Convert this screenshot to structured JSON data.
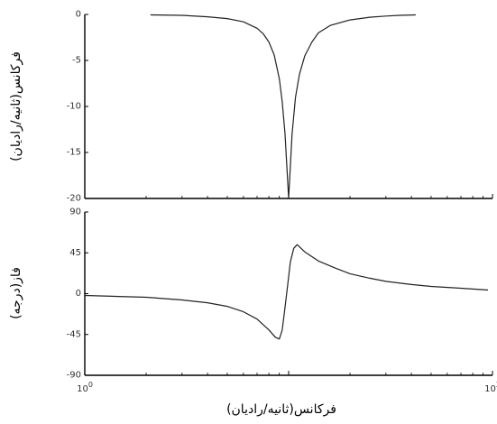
{
  "chart_data": [
    {
      "type": "line",
      "title": "",
      "ylabel": "فرکانس(ثانیه/رادیان)",
      "xlabel": "",
      "x_scale": "log",
      "xlim": [
        1,
        100
      ],
      "ylim": [
        -20,
        0
      ],
      "yticks": [
        "0",
        "-5",
        "-10",
        "-15",
        "-20"
      ],
      "grid": false,
      "series": [
        {
          "x": [
            2.1,
            3,
            4,
            5,
            6,
            7,
            7.5,
            8,
            8.5,
            9,
            9.3,
            9.6,
            10,
            10.4,
            10.8,
            11.3,
            12,
            13,
            14,
            16,
            20,
            25,
            30,
            35,
            42
          ],
          "values": [
            -0.05,
            -0.1,
            -0.25,
            -0.45,
            -0.8,
            -1.5,
            -2.1,
            -3.0,
            -4.4,
            -7.0,
            -9.5,
            -13.0,
            -20.0,
            -13.0,
            -9.0,
            -6.5,
            -4.5,
            -3.0,
            -2.0,
            -1.2,
            -0.6,
            -0.3,
            -0.18,
            -0.1,
            -0.05
          ]
        }
      ]
    },
    {
      "type": "line",
      "title": "",
      "ylabel": "فاز(درجه)",
      "xlabel": "فرکانس(ثانیه/رادیان)",
      "x_scale": "log",
      "xlim": [
        1,
        100
      ],
      "ylim": [
        -90,
        90
      ],
      "yticks": [
        "90",
        "45",
        "0",
        "-45",
        "-90"
      ],
      "xticks": [
        {
          "value": 1,
          "base": "10",
          "exp": "0"
        },
        {
          "value": 100,
          "base": "10",
          "exp": "2"
        }
      ],
      "grid": false,
      "series": [
        {
          "x": [
            1,
            2,
            3,
            4,
            5,
            6,
            7,
            8,
            8.6,
            9.0,
            9.3,
            9.6,
            9.9,
            10.2,
            10.6,
            11,
            12,
            14,
            17,
            20,
            25,
            30,
            40,
            50,
            70,
            95
          ],
          "values": [
            -2,
            -4,
            -7,
            -10,
            -14,
            -20,
            -28,
            -40,
            -48,
            -50,
            -40,
            -15,
            10,
            35,
            50,
            54,
            46,
            36,
            28,
            22,
            17,
            13.5,
            10,
            8,
            6,
            4
          ]
        }
      ]
    }
  ]
}
